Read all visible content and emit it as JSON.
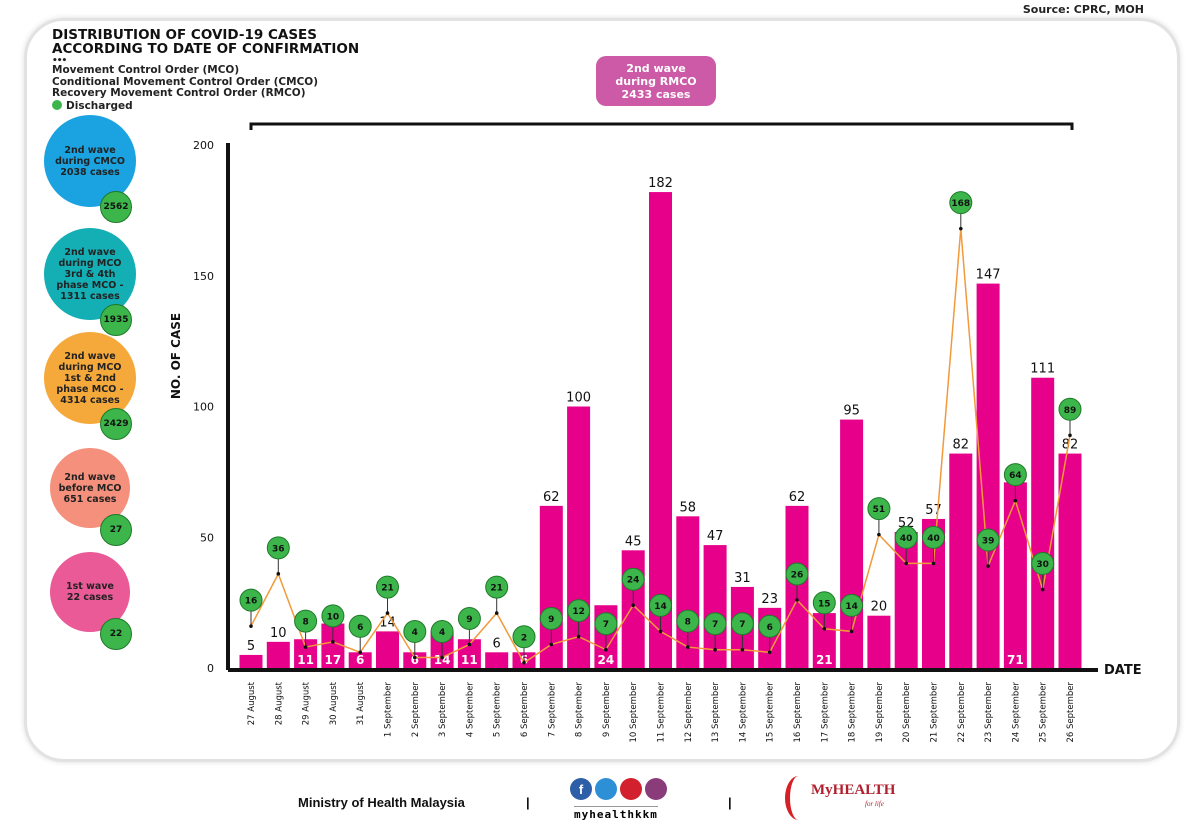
{
  "source": "Source: CPRC, MOH",
  "title_line1": "DISTRIBUTION OF COVID-19 CASES",
  "title_line2": "ACCORDING TO DATE OF CONFIRMATION",
  "legend": {
    "dots": "•••",
    "items": [
      "Movement Control Order (MCO)",
      "Conditional Movement Control Order (CMCO)",
      "Recovery Movement Control Order (RMCO)"
    ],
    "discharged": "Discharged"
  },
  "waves": [
    {
      "lines": [
        "2nd wave",
        "during CMCO",
        "2038 cases"
      ],
      "discharged": "2562",
      "color": "#1aa3e0"
    },
    {
      "lines": [
        "2nd wave",
        "during MCO",
        "3rd & 4th",
        "phase MCO -",
        "1311 cases"
      ],
      "discharged": "1935",
      "color": "#14aeb5"
    },
    {
      "lines": [
        "2nd wave",
        "during MCO",
        "1st & 2nd",
        "phase MCO -",
        "4314 cases"
      ],
      "discharged": "2429",
      "color": "#f6a93b"
    },
    {
      "lines": [
        "2nd wave",
        "before MCO",
        "651 cases"
      ],
      "discharged": "27",
      "color": "#f5907c"
    },
    {
      "lines": [
        "1st wave",
        "22 cases"
      ],
      "discharged": "22",
      "color": "#ea5a97"
    }
  ],
  "rmco_box": {
    "line1": "2nd wave",
    "line2": "during RMCO",
    "line3": "2433 cases",
    "color": "#cc5aa6"
  },
  "chart_data": {
    "type": "bar",
    "ylabel": "NO. OF CASE",
    "xlabel": "DATE",
    "ylim": [
      0,
      200
    ],
    "yticks": [
      0,
      50,
      100,
      150,
      200
    ],
    "categories": [
      "27 August",
      "28 August",
      "29 August",
      "30 August",
      "31 August",
      "1 September",
      "2 September",
      "3 September",
      "4 September",
      "5 September",
      "6 September",
      "7 September",
      "8 September",
      "9 September",
      "10 September",
      "11 September",
      "12 September",
      "13 September",
      "14 September",
      "15 September",
      "16 September",
      "17 September",
      "18 September",
      "19 September",
      "20 September",
      "21 September",
      "22 September",
      "23 September",
      "24 September",
      "25 September",
      "26 September"
    ],
    "series": [
      {
        "name": "Cases",
        "type": "bar",
        "color": "#e6008a",
        "values": [
          5,
          10,
          11,
          17,
          6,
          14,
          6,
          14,
          11,
          6,
          6,
          62,
          100,
          24,
          45,
          182,
          58,
          47,
          31,
          23,
          62,
          21,
          95,
          20,
          52,
          57,
          82,
          147,
          71,
          111,
          82
        ]
      },
      {
        "name": "Discharged",
        "type": "line",
        "color": "#f29a3a",
        "marker_color": "#3cb54a",
        "values": [
          16,
          36,
          8,
          10,
          6,
          21,
          4,
          4,
          9,
          21,
          2,
          9,
          12,
          7,
          24,
          14,
          8,
          7,
          7,
          6,
          26,
          15,
          14,
          51,
          40,
          40,
          168,
          39,
          64,
          30,
          89
        ]
      }
    ],
    "grid": false
  },
  "footer": {
    "ministry": "Ministry of Health Malaysia",
    "social": "myhealthkkm",
    "brand": "MyHEALTH",
    "brand_sub": "for life"
  }
}
